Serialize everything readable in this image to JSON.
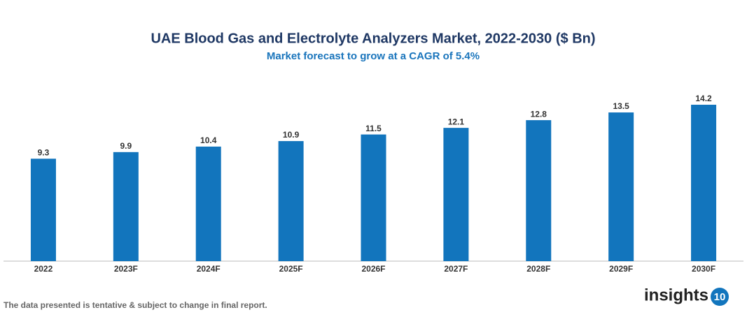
{
  "chart_data": {
    "type": "bar",
    "title": "UAE Blood Gas and Electrolyte Analyzers Market, 2022-2030 ($ Bn)",
    "subtitle": "Market forecast to grow at a CAGR of 5.4%",
    "categories": [
      "2022",
      "2023F",
      "2024F",
      "2025F",
      "2026F",
      "2027F",
      "2028F",
      "2029F",
      "2030F"
    ],
    "values": [
      9.3,
      9.9,
      10.4,
      10.9,
      11.5,
      12.1,
      12.8,
      13.5,
      14.2
    ],
    "color": "#1275bd",
    "footnote": "The data presented is tentative & subject to change in final report.",
    "logo": {
      "text": "insights",
      "badge": "10"
    }
  }
}
